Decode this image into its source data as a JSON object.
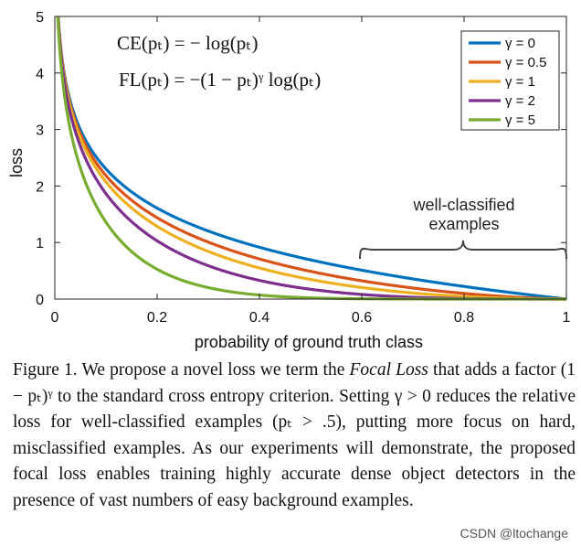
{
  "chart_data": {
    "type": "line",
    "title": "",
    "xlabel": "probability of ground truth class",
    "ylabel": "loss",
    "xlim": [
      0,
      1
    ],
    "ylim": [
      0,
      5
    ],
    "x_ticks": [
      "0",
      "0.2",
      "0.4",
      "0.6",
      "0.8",
      "1"
    ],
    "y_ticks": [
      "0",
      "1",
      "2",
      "3",
      "4",
      "5"
    ],
    "x_tick_values": [
      0,
      0.2,
      0.4,
      0.6,
      0.8,
      1
    ],
    "y_tick_values": [
      0,
      1,
      2,
      3,
      4,
      5
    ],
    "grid": false,
    "legend_position": "top-right",
    "formula_ce": "CE(pₜ) = − log(pₜ)",
    "formula_fl": "FL(pₜ) = −(1 − pₜ)ᵞ log(pₜ)",
    "annotation": {
      "text_line1": "well-classified",
      "text_line2": "examples",
      "x_range": [
        0.6,
        1.0
      ]
    },
    "series": [
      {
        "name": "γ = 0",
        "gamma": 0,
        "color": "#0072BD",
        "function": "-(1-p)^gamma*ln(p)",
        "x": [
          0.01,
          0.02,
          0.05,
          0.1,
          0.2,
          0.3,
          0.4,
          0.5,
          0.6,
          0.7,
          0.8,
          0.9,
          1.0
        ],
        "values": [
          4.61,
          3.91,
          3.0,
          2.3,
          1.61,
          1.2,
          0.92,
          0.69,
          0.51,
          0.36,
          0.22,
          0.11,
          0.0
        ]
      },
      {
        "name": "γ = 0.5",
        "gamma": 0.5,
        "color": "#D95319",
        "function": "-(1-p)^gamma*ln(p)",
        "x": [
          0.01,
          0.02,
          0.05,
          0.1,
          0.2,
          0.3,
          0.4,
          0.5,
          0.6,
          0.7,
          0.8,
          0.9,
          1.0
        ],
        "values": [
          4.58,
          3.87,
          2.92,
          2.18,
          1.44,
          1.01,
          0.71,
          0.49,
          0.32,
          0.2,
          0.1,
          0.03,
          0.0
        ]
      },
      {
        "name": "γ = 1",
        "gamma": 1,
        "color": "#EDB120",
        "function": "-(1-p)^gamma*ln(p)",
        "x": [
          0.01,
          0.02,
          0.05,
          0.1,
          0.2,
          0.3,
          0.4,
          0.5,
          0.6,
          0.7,
          0.8,
          0.9,
          1.0
        ],
        "values": [
          4.56,
          3.83,
          2.85,
          2.07,
          1.29,
          0.84,
          0.55,
          0.35,
          0.2,
          0.11,
          0.04,
          0.01,
          0.0
        ]
      },
      {
        "name": "γ = 2",
        "gamma": 2,
        "color": "#7E2F8E",
        "function": "-(1-p)^gamma*ln(p)",
        "x": [
          0.01,
          0.02,
          0.05,
          0.1,
          0.2,
          0.3,
          0.4,
          0.5,
          0.6,
          0.7,
          0.8,
          0.9,
          1.0
        ],
        "values": [
          4.51,
          3.76,
          2.7,
          1.87,
          1.03,
          0.59,
          0.33,
          0.17,
          0.08,
          0.03,
          0.01,
          0.0,
          0.0
        ]
      },
      {
        "name": "γ = 5",
        "gamma": 5,
        "color": "#77AC30",
        "function": "-(1-p)^gamma*ln(p)",
        "x": [
          0.01,
          0.02,
          0.05,
          0.1,
          0.2,
          0.3,
          0.4,
          0.5,
          0.6,
          0.7,
          0.8,
          0.9,
          1.0
        ],
        "values": [
          4.38,
          3.54,
          2.32,
          1.36,
          0.53,
          0.2,
          0.07,
          0.02,
          0.01,
          0.0,
          0.0,
          0.0,
          0.0
        ]
      }
    ]
  },
  "caption": {
    "label": "Figure 1.",
    "text_before": " We propose a novel loss we term the ",
    "emphasis": "Focal Loss",
    "text_after": " that adds a factor (1 − pₜ)ᵞ to the standard cross entropy criterion. Setting γ > 0 reduces the relative loss for well-classified examples (pₜ > .5), putting more focus on hard, misclassified examples. As our experiments will demonstrate, the proposed focal loss enables training highly accurate dense object detectors in the presence of vast numbers of easy background examples."
  },
  "watermark": "CSDN @ltochange"
}
